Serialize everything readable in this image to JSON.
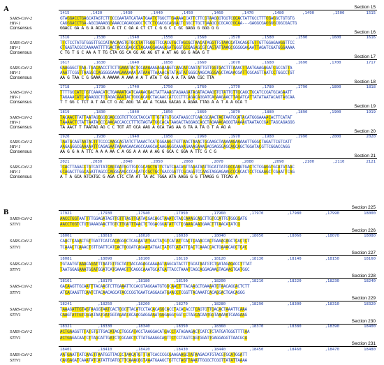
{
  "panels": [
    {
      "letter": "A",
      "sections": [
        {
          "title": "Section 15",
          "ticks": [
            "1415",
            ",1420",
            ",1430",
            ",1440",
            ",1450",
            ",1460",
            ",1470",
            ",1480",
            ",1490",
            ",1500",
            "1515"
          ],
          "rows": [
            {
              "name": "SARS-CoV-2",
              "seq": "GTAGGACCTGAGCATAGTCTTGCCGAATATCATAATGAATCTGGCTTGAAAACCATTCTTCGTAAGGGTGGTCGCACTATTGCCTTTGGAGGCTGTGTG"
            },
            {
              "name": "HIV-1",
              "seq": "CAGGGACCTGA-AGCGAAAGGGAAACCAGAGGAGCTCTCTCGACGCAGGACTCGGCTTGCTGAAGCGCGCACGGCAA---GAGGCGAGGGGCGGCGACTG"
            },
            {
              "name": "Consensus",
              "seq": "GGACC GA   A   G  A    ACCA  G  A  CT  C  GA  A    CT  CT  C  G  G  C  C    GC   GAGG G GGG G  G"
            }
          ]
        },
        {
          "title": "Section 16",
          "ticks": [
            "1516",
            ",1530",
            ",1540",
            ",1550",
            ",1560",
            ",1570",
            ",1580",
            ",1590",
            ",1600",
            "1616"
          ],
          "rows": [
            {
              "name": "SARS-CoV-2",
              "seq": "TTCTCCTATGTGGGTTGCCATAACAAGTGTGCCTATTGGGTTCCACGTGCTAGCGCTAACATAGGTTGTAACCATACAGGTGTTGTTGGAGAAGGTTCC"
            },
            {
              "name": "HIV-1",
              "seq": "GTGAGTACGCCAAAAATTTTGACTAGCGGAGGCTAGAAGGAGAGAGATGGGTGCGAGAGCGTCAGTATTAAGCGGGGGAGAATTAGATCGATGGGAAAA"
            },
            {
              "name": "Consensus",
              "seq": "  C  TG  T G   C  AA  A   T  TG  CTA  GG   CA   GG  AG    AG    GT  A  AT  AG  GG  G  AGA   G  T"
            }
          ]
        },
        {
          "title": "Section 17",
          "ticks": [
            "1617",
            ",1630",
            ",1640",
            ",1650",
            ",1660",
            ",1670",
            ",1680",
            ",1690",
            ",1700",
            "1717"
          ],
          "rows": [
            {
              "name": "SARS-CoV-2",
              "seq": "GAAGGGCTTAA-TGACAACCTTCTTGAAATACTCCAAAAAGAGAAAGTCAACATCAATATTGTTGGTGACTTTAAACTTAATGAAGAGATCGCCATTA"
            },
            {
              "name": "HIV-1",
              "seq": "AAATTCGGTTAAGGCCAGGGGGAAAGAAAAAATATAAATTAAAACATATAGTATGGGCAAGCAGGGAGCTAGAACGATTCGCAGTTAATCCTGGCCTGT"
            },
            {
              "name": "Consensus",
              "seq": "  AA  G  TAA      C   G     GAAA  A    AAAAA A AAA  A  A  T  ATA  T  GG  A     A  TA  GAA     CGC  TTA"
            }
          ]
        },
        {
          "title": "Section 18",
          "ticks": [
            "1718",
            ",1730",
            ",1740",
            ",1750",
            ",1760",
            ",1770",
            ",1780",
            ",1790",
            ",1800",
            "1818"
          ],
          "rows": [
            {
              "name": "SARS-CoV-2",
              "seq": "TTTTGGCATCTGTCAAACATCTGAAAATGATCAAAAGGACTATTAAAGTAGAAGATAGATACAAGGTGTATTGTTGCAGCTGCATCCGATGCAGAATT"
            },
            {
              "name": "HIV-1",
              "seq": "TAGAAACATCAGAAGGCTGTAGACAAATACTGGGACAGCTACAACCATCCCTTCAGACAGGATCAGAAGAACTTAGATCATTATATAATACAGTAGCAA"
            },
            {
              "name": "Consensus",
              "seq": "T  T GG C TCT  A    T     AA  CT G AC AGG  TA AA  A TCAGA  GACAG A AGAA   TTAG A  A  T  A  A  GCA  T"
            }
          ]
        },
        {
          "title": "Section 19",
          "ticks": [
            "1819",
            ",1830",
            ",1840",
            ",1850",
            ",1860",
            ",1870",
            ",1880",
            ",1890",
            ",1900",
            "1919"
          ],
          "rows": [
            {
              "name": "SARS-CoV-2",
              "seq": "TACAACTTATTAATAGGGGCGAGCGGTGTTCGCTACCATTTGTATGTGCATAAGCCTCAACGCAACTAGTAATGGATACATGGGAAAACACTTCATAT"
            },
            {
              "name": "HIV-1",
              "seq": "TAAAACTCTATTAATAGCCCAAGACCACCCTTTGTAGTATGGCACATAAGACTAGGAGCAGCTAGAAAGAGGGTAAAAGTAATACCGACTAGCAGAGGG"
            },
            {
              "name": "Consensus",
              "seq": "TA AACT  T TAATAG    AG C   C  TGT   AT  GCA  AAG   A    GCA  TAG AA  G   TA A  TA   G  T A  AG  A"
            }
          ]
        },
        {
          "title": "Section 20",
          "ticks": [
            "1920",
            ",1930",
            ",1940",
            ",1950",
            ",1960",
            ",1970",
            ",1980",
            ",1990",
            ",2000",
            "2020"
          ],
          "rows": [
            {
              "name": "SARS-CoV-2",
              "seq": "TAATGCAGTAATACTTTCCCCAAGCAGTATCTTAAACTCATCGGAAGCTGTTAACTAAACTGCAAGCTAAAAAGAAAAATTGGGCTAGATTCGTCATT"
            },
            {
              "name": "HIV-1",
              "seq": "AAGAGGGCGAAAAATTCAGAGAATAAAAGAACAGCCAAGCACAAGAGGCAAAAGAAAGAAAGACGAGGGAGCAGCAGCTGGATACGTTCGGACCAGG"
            },
            {
              "name": "Consensus",
              "seq": "AA  G  G A  A  TTC    A    A  A  AA  C  A    GG  A   A  AA A   AG    G  GCA  C  GGA  A  TTC G  C  G"
            }
          ]
        },
        {
          "title": "Section 21",
          "ticks": [
            "2021",
            ",2030",
            ",2040",
            ",2050",
            ",2060",
            ",2070",
            ",2080",
            ",2090",
            ",2100",
            ",2110",
            "2121"
          ],
          "rows": [
            {
              "name": "SARS-CoV-2",
              "seq": "TCACTTAGACCTGTCATTATCAGTAATGGTTGCCGCAGCTGTTCTATCAACAGTTAGATAATTGCATTATGGCCAAGTGACTCTCGAGGTGCATGTAAC"
            },
            {
              "name": "HIV-1",
              "seq": "GCAGACTTGGCAGATTAGCCCAGGGAAGCCCACATCCGCTGCTGACCGATTCGCAGGTCCAAGTAGGAGAAGCCCACACTCCTCGAAGCTCGAATTCAG"
            },
            {
              "name": "Consensus",
              "seq": "  A   T   A  GCA  ATCATGC  G  AGA   CTC  CTA  AT  TA  AC  TGGA   ATA  AAGG  G  G  TTAAGG  G  TTCAG  A"
            }
          ]
        }
      ]
    },
    {
      "letter": "B",
      "sections": [
        {
          "title": "Section 225",
          "ticks": [
            "17921",
            ",17930",
            ",17940",
            ",17950",
            ",17960",
            ",17970",
            ",17980",
            ",17990",
            "18000"
          ],
          "rows": [
            {
              "name": "SARS-CoV-2",
              "seq": "AACCTGGTAATTTTGGAGATAGTTGTTTAGTTGATACGACAGCTAAATCTACCAAAGCAGCTTGTCCATTGTGGGGATG"
            },
            {
              "name": "STIV1",
              "seq": "AACCTGGTCTGTGAAAGAACTTGTCTTGATTTAACTCTGGACGGATATTCTCGAAACAAGGAACTTTAACATATCG"
            }
          ]
        },
        {
          "title": "Section 226",
          "ticks": [
            "18001",
            ",18010",
            ",18020",
            ",18030",
            ",18040",
            ",18050",
            ",18060",
            ",18070",
            "18080"
          ],
          "rows": [
            {
              "name": "SARS-CoV-2",
              "seq": "CAACTCAAACTGTTGATTCATCACAGGGCTCAGAATATGACTATGTCATATTCACTCAAACCACTGAAACAGCTCACTCT"
            },
            {
              "name": "STIV1",
              "seq": "TCAAACTCAAACTGTTGATTCATCACTGGGATCAGAATATGACTATGTCATATTCACTCAAACCACTGAAACAGCTCAC"
            }
          ]
        },
        {
          "title": "Section 227",
          "ticks": [
            "18081",
            ",18090",
            ",18100",
            ",18110",
            ",18120",
            ",18130",
            ",18140",
            ",18150",
            "18160"
          ],
          "rows": [
            {
              "name": "SARS-CoV-2",
              "seq": "TGTAATGTAAACAGATTTAATGTTGCTATTACCAGAGCAAAAGTAGGCATACTTTGCATAATGTCTGATAGAGACCTTTAT"
            },
            {
              "name": "STIV1",
              "seq": "TAATGGAGAAATGGATGGATCATGAAAGTTCAGGCAAATGCATGATTACCTAAATCAGCAGGAGAAGTAGAAGTGATGGC"
            }
          ]
        },
        {
          "title": "Section 228",
          "ticks": [
            "18161",
            ",18170",
            ",18180",
            ",18190",
            ",18200",
            ",18210",
            ",18220",
            ",18230",
            "18240"
          ],
          "rows": [
            {
              "name": "SARS-CoV-2",
              "seq": "GACAAGTTGCAATTTACAAGTCTTGAAATTCCACGTAGGAATGTGGCAACTTTACAAGCTGAAAATGTAACAGGACTCTT"
            },
            {
              "name": "STIV1",
              "seq": "ATCACAAGTTCAATCTACAACAGCATACCCGGTGAATCAGGACATGAACCTCGGTTACAAATCACAGGACTGACAGGG"
            }
          ]
        },
        {
          "title": "Section 229",
          "ticks": [
            "18241",
            ",18250",
            ",18260",
            ",18270",
            ",18280",
            ",18290",
            ",18300",
            ",18310",
            "18320"
          ],
          "rows": [
            {
              "name": "SARS-CoV-2",
              "seq": "TAAAGATTGTAGTAAGGTAATCACTGGGTTACATCCTACACAGGCACCTACACACCTCAGTGTTGACACTAAATTCAAA"
            },
            {
              "name": "STIV1",
              "seq": "CAAGTATTGTCGGATAATGATGGTAGAATACAACGAGGAAATGGGAGGTGGTCCTAGCACAATGGTAAAAATCAAGAAG"
            }
          ]
        },
        {
          "title": "Section 230",
          "ticks": [
            "18321",
            ",18330",
            ",18340",
            ",18350",
            ",18360",
            ",18370",
            ",18380",
            ",18390",
            "18400"
          ],
          "rows": [
            {
              "name": "SARS-CoV-2",
              "seq": "ACTGAAGGTTTATGTGTTGACATACCTGGCATACCTAAGGACATGACCTATAGAAGACTCATCTCTATGATGGGTTTTAA"
            },
            {
              "name": "STIV1",
              "seq": "ACTGAGACAATCTTAGCATTGATCTCGCAACTCTTATGAAGGCAGTTCTCCTAGTCAGTGGATTGAGGAGGTTAACGCA"
            }
          ]
        },
        {
          "title": "Section 231",
          "ticks": [
            "18401",
            ",18410",
            ",18420",
            ",18430",
            ",18440",
            ",18450",
            ",18460",
            ",18470",
            "18480"
          ],
          "rows": [
            {
              "name": "SARS-CoV-2",
              "seq": "AATGAATTATCAAGTTAATGGTTACCCTAACATGTTTATCACCCGCGAAGAAGCTATAAGACATGTACGTGCATGGATT"
            },
            {
              "name": "STIV1",
              "seq": "GAGGAGATCAAATATCATATTGATGCTTCAAAGGGTAAATGAAGCTGTTCTAGTTAAATTGGGCTCGGTTATATTAAAA"
            }
          ]
        }
      ]
    }
  ]
}
